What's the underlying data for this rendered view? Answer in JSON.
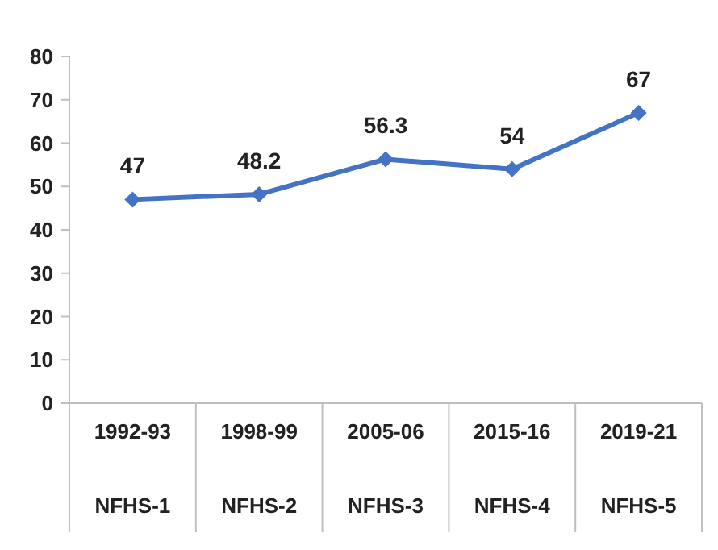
{
  "chart_data": {
    "type": "line",
    "categories": [
      "1992-93\nNFHS-1",
      "1998-99\nNFHS-2",
      "2005-06\nNFHS-3",
      "2015-16\nNFHS-4",
      "2019-21\nNFHS-5"
    ],
    "series": [
      {
        "color": "#4472c4",
        "values": [
          47,
          48.2,
          56.3,
          54,
          67
        ]
      }
    ],
    "ylim": [
      0,
      80
    ],
    "yticks": [
      0,
      10,
      20,
      30,
      40,
      50,
      60,
      70,
      80
    ],
    "grid": false,
    "marker": "diamond",
    "line_style": "solid",
    "data_labels": true
  }
}
